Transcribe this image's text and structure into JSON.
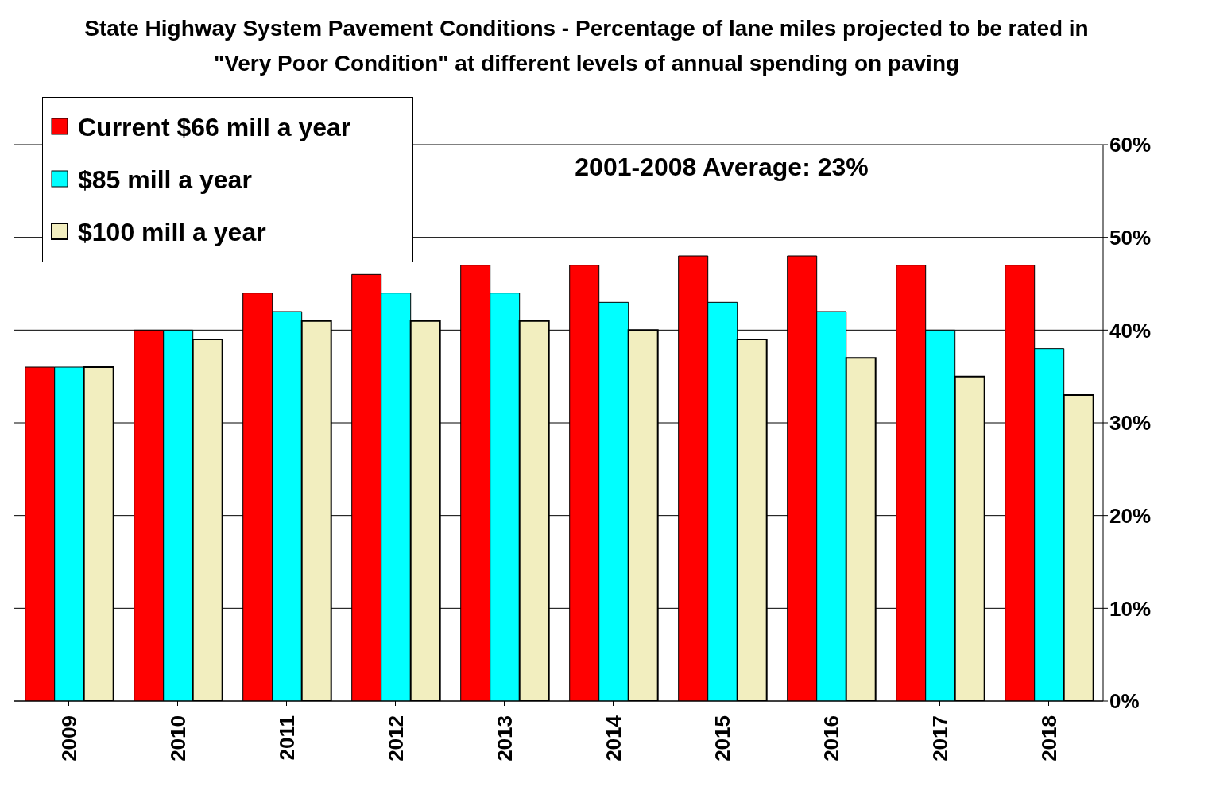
{
  "chart_data": {
    "type": "bar",
    "title": "State Highway System Pavement Conditions - Percentage of lane miles projected to be rated in \"Very Poor Condition\" at different levels of annual spending on paving",
    "categories": [
      "2009",
      "2010",
      "2011",
      "2012",
      "2013",
      "2014",
      "2015",
      "2016",
      "2017",
      "2018"
    ],
    "series": [
      {
        "name": "Current $66 mill a year",
        "color": "#ff0000",
        "values": [
          36,
          40,
          44,
          46,
          47,
          47,
          48,
          48,
          47,
          47
        ]
      },
      {
        "name": "$85 mill a year",
        "color": "#00ffff",
        "values": [
          36,
          40,
          42,
          44,
          44,
          43,
          43,
          42,
          40,
          38
        ]
      },
      {
        "name": "$100 mill a year",
        "color": "#f2eebf",
        "values": [
          36,
          39,
          41,
          41,
          41,
          40,
          39,
          37,
          35,
          33
        ]
      }
    ],
    "ylim": [
      0,
      60
    ],
    "yticks": [
      {
        "value": 0,
        "label": "0%"
      },
      {
        "value": 10,
        "label": "10%"
      },
      {
        "value": 20,
        "label": "20%"
      },
      {
        "value": 30,
        "label": "30%"
      },
      {
        "value": 40,
        "label": "40%"
      },
      {
        "value": 50,
        "label": "50%"
      },
      {
        "value": 60,
        "label": "60%"
      }
    ],
    "grid": "y",
    "legend": "top left",
    "annotations": [
      "2001-2008 Average: 23%"
    ]
  }
}
